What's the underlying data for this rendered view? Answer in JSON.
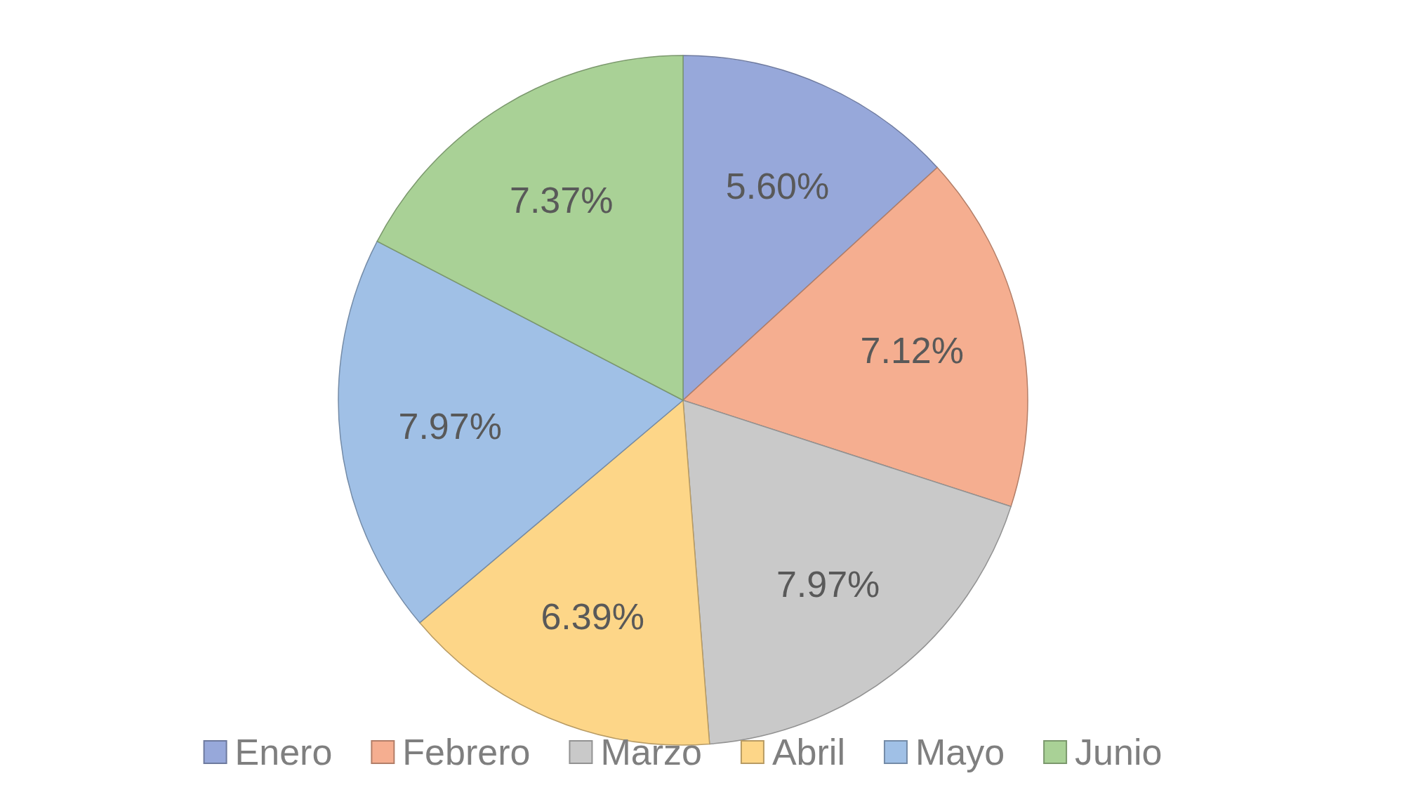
{
  "chart_data": {
    "type": "pie",
    "categories": [
      "Enero",
      "Febrero",
      "Marzo",
      "Abril",
      "Mayo",
      "Junio"
    ],
    "values": [
      5.6,
      7.12,
      7.97,
      6.39,
      7.97,
      7.37
    ],
    "colors": [
      "#97a8da",
      "#f5ae90",
      "#c9c9c9",
      "#fdd688",
      "#a0c0e6",
      "#a9d196"
    ],
    "value_labels": [
      "5.60%",
      "7.12%",
      "7.97%",
      "6.39%",
      "7.97%",
      "7.37%"
    ],
    "legend": "bottom"
  }
}
